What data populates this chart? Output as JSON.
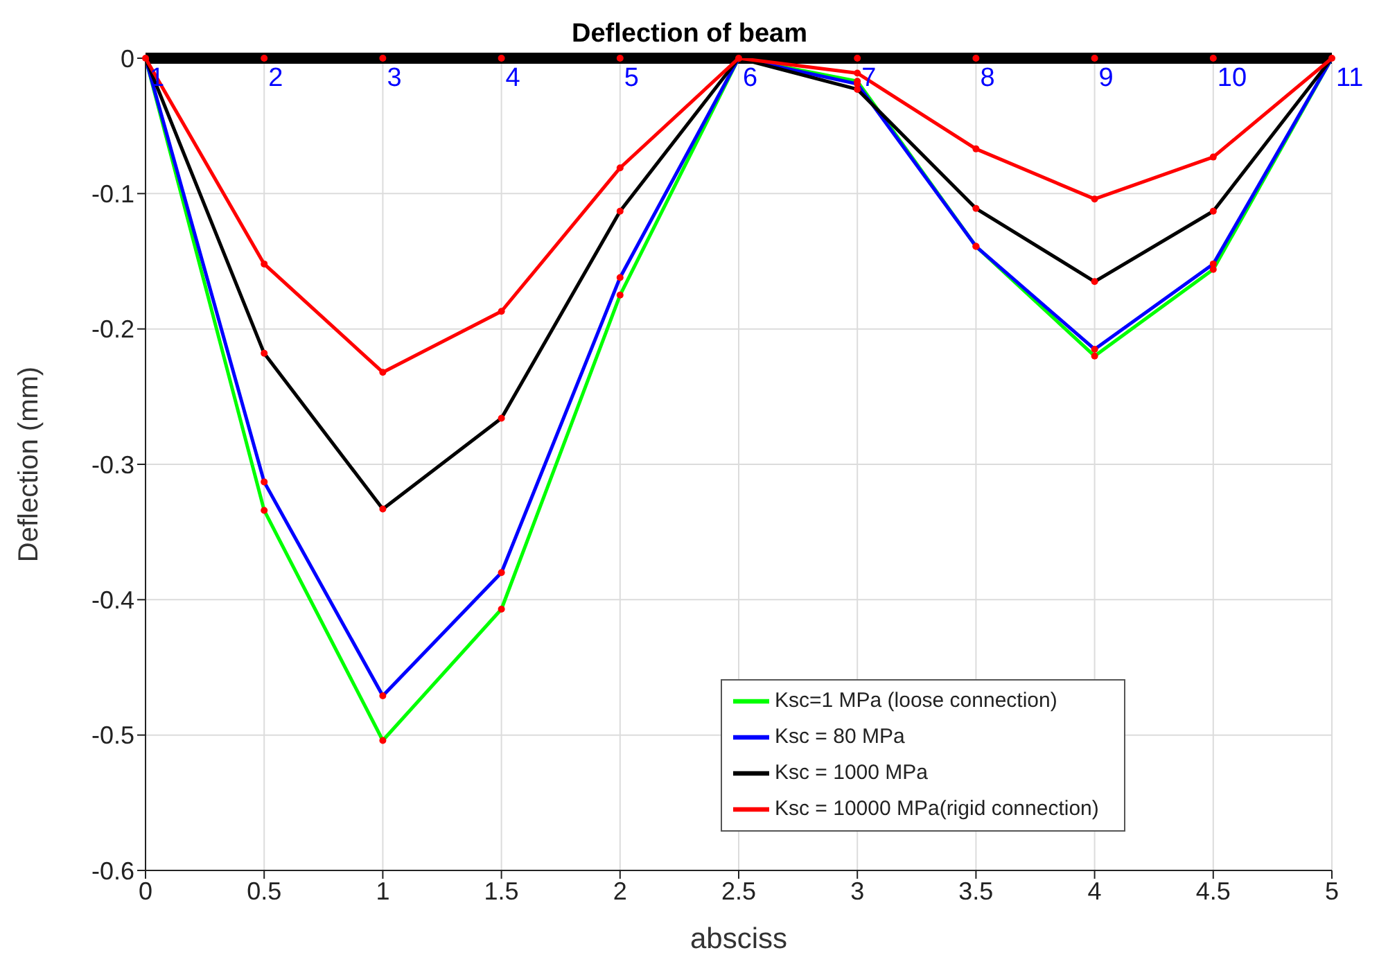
{
  "chart_data": {
    "type": "line",
    "title": "Deflection of beam",
    "xlabel": "absciss",
    "ylabel": "Deflection (mm)",
    "x": [
      0,
      0.5,
      1,
      1.5,
      2,
      2.5,
      3,
      3.5,
      4,
      4.5,
      5
    ],
    "series": [
      {
        "name": "Ksc=1 MPa (loose connection)",
        "color": "#00ff00",
        "values": [
          0,
          -0.334,
          -0.504,
          -0.407,
          -0.175,
          0,
          -0.017,
          -0.139,
          -0.22,
          -0.156,
          0
        ]
      },
      {
        "name": "Ksc = 80 MPa",
        "color": "#0000ff",
        "values": [
          0,
          -0.313,
          -0.471,
          -0.38,
          -0.162,
          0,
          -0.019,
          -0.139,
          -0.215,
          -0.152,
          0
        ]
      },
      {
        "name": "Ksc = 1000 MPa",
        "color": "#000000",
        "values": [
          0,
          -0.218,
          -0.333,
          -0.266,
          -0.113,
          0,
          -0.023,
          -0.111,
          -0.165,
          -0.113,
          0
        ]
      },
      {
        "name": "Ksc = 10000 MPa(rigid connection)",
        "color": "#ff0000",
        "values": [
          0,
          -0.152,
          -0.232,
          -0.187,
          -0.081,
          0,
          -0.011,
          -0.067,
          -0.104,
          -0.073,
          0
        ]
      }
    ],
    "xlim": [
      0,
      5
    ],
    "xticks": [
      0,
      0.5,
      1,
      1.5,
      2,
      2.5,
      3,
      3.5,
      4,
      4.5,
      5
    ],
    "ylim": [
      -0.6,
      0
    ],
    "yticks": [
      -0.6,
      -0.5,
      -0.4,
      -0.3,
      -0.2,
      -0.1,
      0
    ],
    "ref_lines": [
      {
        "axis": "y",
        "value": 0,
        "color": "#000000"
      }
    ],
    "annotations": [
      {
        "text": "1",
        "x": 0,
        "y": 0
      },
      {
        "text": "2",
        "x": 0.5,
        "y": 0
      },
      {
        "text": "3",
        "x": 1,
        "y": 0
      },
      {
        "text": "4",
        "x": 1.5,
        "y": 0
      },
      {
        "text": "5",
        "x": 2,
        "y": 0
      },
      {
        "text": "6",
        "x": 2.5,
        "y": 0
      },
      {
        "text": "7",
        "x": 3,
        "y": 0
      },
      {
        "text": "8",
        "x": 3.5,
        "y": 0
      },
      {
        "text": "9",
        "x": 4,
        "y": 0
      },
      {
        "text": "10",
        "x": 4.5,
        "y": 0
      },
      {
        "text": "11",
        "x": 5,
        "y": 0
      }
    ],
    "grid": true,
    "legend": "bottom right",
    "marker": "circle",
    "line_style": "solid"
  }
}
